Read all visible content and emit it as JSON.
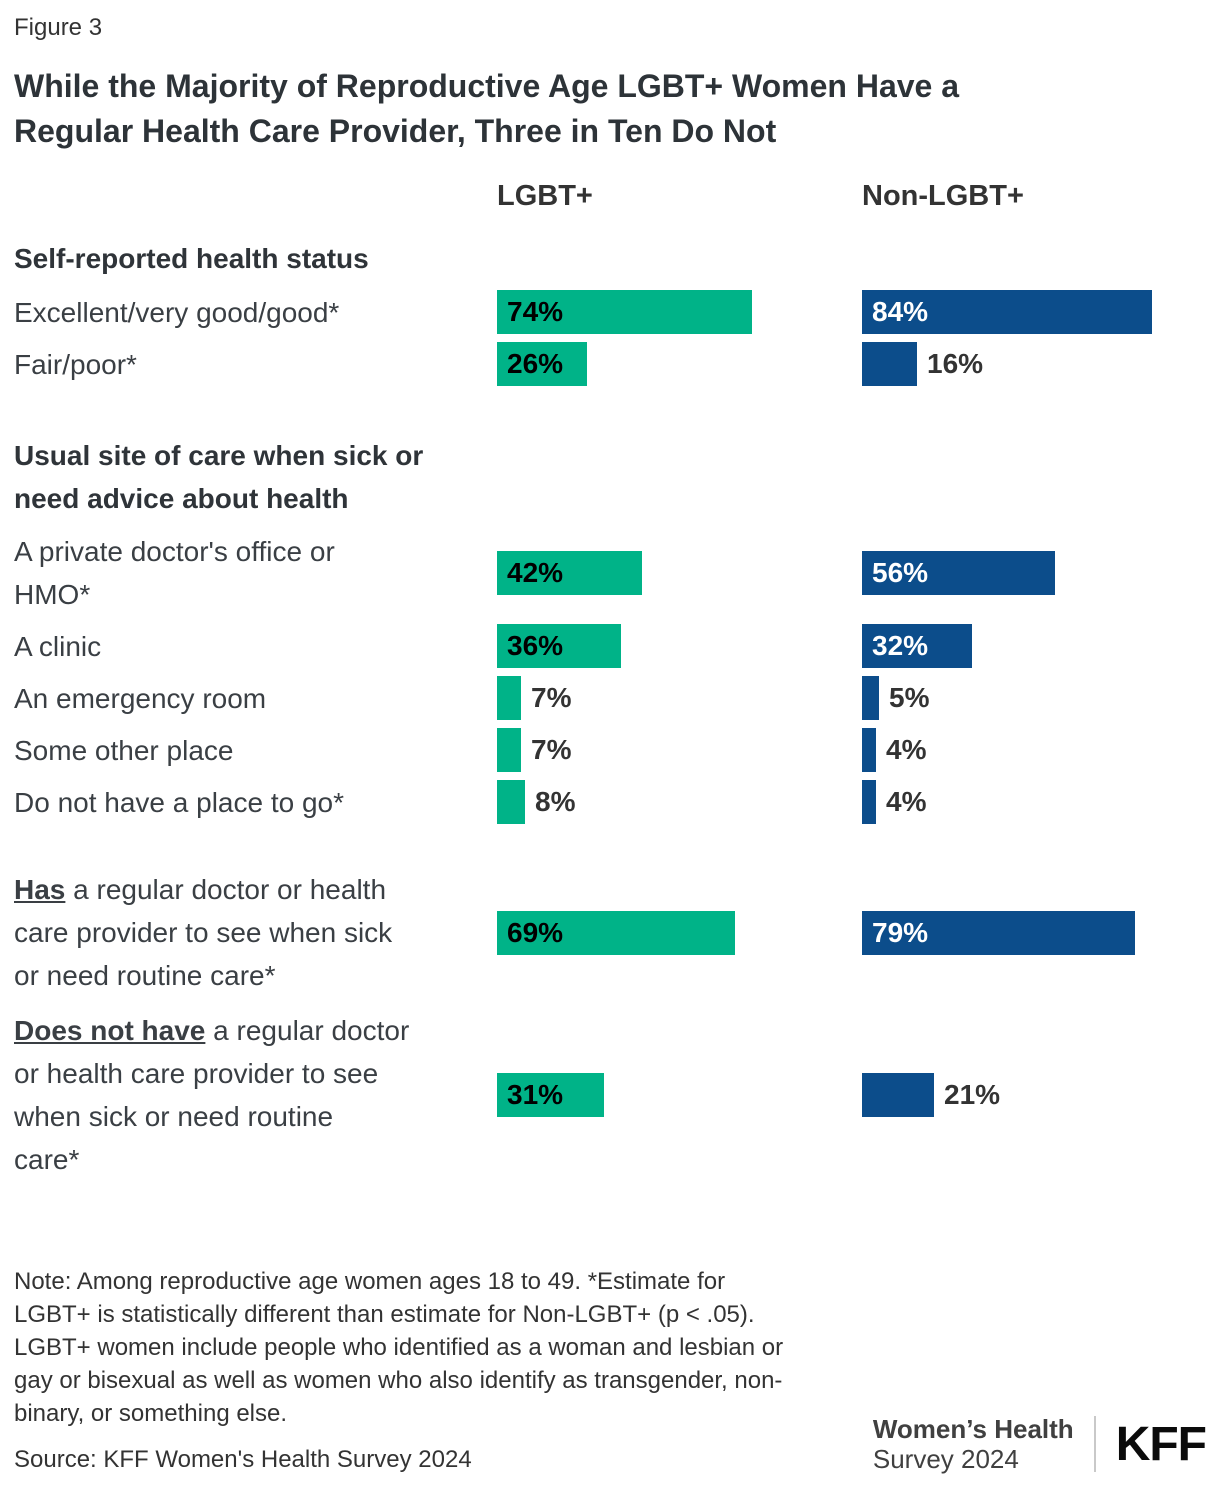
{
  "figure_label": "Figure 3",
  "title_lines": [
    "While the Majority of Reproductive Age LGBT+ Women Have a",
    "Regular Health Care Provider, Three in Ten Do Not"
  ],
  "chart_data": {
    "type": "bar",
    "orientation": "horizontal",
    "unit": "%",
    "xlim": [
      0,
      100
    ],
    "title": "While the Majority of Reproductive Age LGBT+ Women Have a Regular Health Care Provider, Three in Ten Do Not",
    "series_names": [
      "LGBT+",
      "Non-LGBT+"
    ],
    "series_colors": [
      "#00B388",
      "#0C4D8B"
    ],
    "value_label_color_on_green": "#000000",
    "value_label_color_on_blue": "#FFFFFF",
    "sections": [
      {
        "header_lines": [
          "Self-reported health status"
        ],
        "rows": [
          {
            "label_prefix": "",
            "label_lines": [
              "Excellent/very good/good*"
            ],
            "values": [
              74,
              84
            ]
          },
          {
            "label_prefix": "",
            "label_lines": [
              "Fair/poor*"
            ],
            "values": [
              26,
              16
            ]
          }
        ]
      },
      {
        "header_lines": [
          "Usual site of care when sick or",
          "need advice about health"
        ],
        "rows": [
          {
            "label_prefix": "",
            "label_lines": [
              "A private doctor's office or",
              "HMO*"
            ],
            "values": [
              42,
              56
            ]
          },
          {
            "label_prefix": "",
            "label_lines": [
              "A clinic"
            ],
            "values": [
              36,
              32
            ]
          },
          {
            "label_prefix": "",
            "label_lines": [
              "An emergency room"
            ],
            "values": [
              7,
              5
            ]
          },
          {
            "label_prefix": "",
            "label_lines": [
              "Some other place"
            ],
            "values": [
              7,
              4
            ]
          },
          {
            "label_prefix": "",
            "label_lines": [
              "Do not have a place to go*"
            ],
            "values": [
              8,
              4
            ]
          }
        ]
      },
      {
        "header_lines": [],
        "rows": [
          {
            "label_prefix": "Has",
            "label_lines": [
              "a regular doctor or health",
              "care provider to see when sick",
              "or need routine care*"
            ],
            "values": [
              69,
              79
            ]
          },
          {
            "label_prefix": "Does not have",
            "label_lines": [
              "a regular doctor",
              "or health care provider to see",
              "when sick or need routine",
              "care*"
            ],
            "values": [
              31,
              21
            ]
          }
        ]
      }
    ]
  },
  "note_lines": [
    "Note: Among reproductive age women ages 18 to 49. *Estimate for",
    "LGBT+ is statistically different than estimate for Non-LGBT+ (p < .05).",
    "LGBT+ women include people who identified as a woman and lesbian or",
    "gay or bisexual as well as women who also identify as transgender, non-",
    "binary, or something else."
  ],
  "source": "Source: KFF Women's Health Survey 2024",
  "footer": {
    "program_line1": "Women’s Health",
    "program_line2": "Survey 2024",
    "logo": "KFF"
  }
}
